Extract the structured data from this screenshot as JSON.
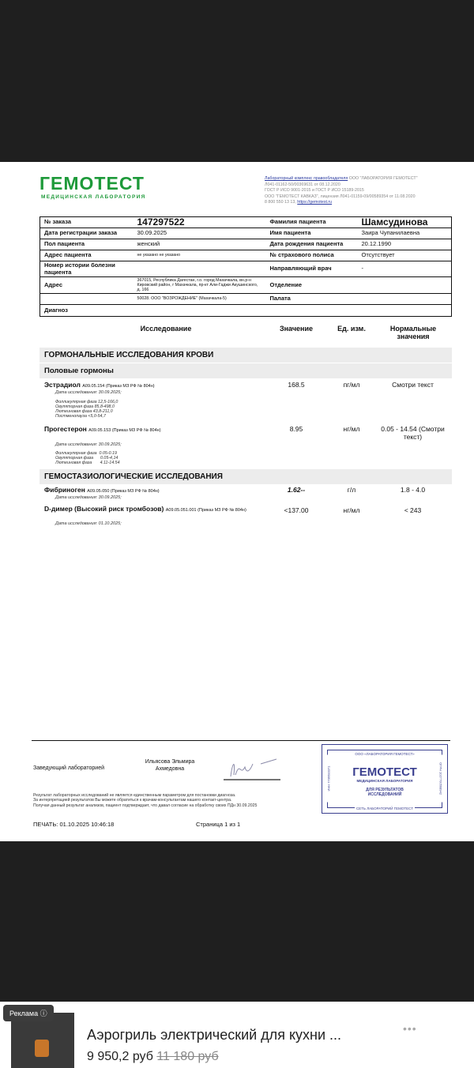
{
  "header": {
    "logo": "ГЕМОТЕСТ",
    "logo_sub": "МЕДИЦИНСКАЯ ЛАБОРАТОРИЯ",
    "lab_info": [
      "Лабораторный комплекс правообладателя",
      "ООО \"ЛАБОРАТОРИЯ ГЕМОТЕСТ\"",
      "Л041-01162-50/00369631 от 08.12.2020",
      "ГОСТ Р ИСО 9001-2015 и ГОСТ Р ИСО 15189-2015",
      "ООО \"ГЕМОТЕСТ КАВКАЗ\", лицензия Л041-01159-09/00589354 от 11.08.2020",
      "8 800 550 13 13,",
      "https://gemotest.ru"
    ]
  },
  "patient": {
    "order_label": "№ заказа",
    "order": "147297522",
    "surname_label": "Фамилия пациента",
    "surname": "Шамсудинова",
    "reg_label": "Дата регистрации заказа",
    "reg": "30.09.2025",
    "name_label": "Имя пациента",
    "name": "Заира Чупанилаевна",
    "sex_label": "Пол пациента",
    "sex": "женский",
    "dob_label": "Дата рождения пациента",
    "dob": "20.12.1990",
    "addr_label": "Адрес пациента",
    "addr": "не указано не указано",
    "policy_label": "№ страхового полиса",
    "policy": "Отсутствует",
    "history_label": "Номер истории болезни пациента",
    "doctor_label": "Направляющий врач",
    "doctor": "-",
    "address_label": "Адрес",
    "address": "367015, Республика Дагестан, г.о. город Махачкала, вн.р-н Кировский район, г Махачкала, пр-кт Али-Гаджи Акушинского, д. 166",
    "dept_label": "Отделение",
    "clinic": "50028. ООО \"ВОЗРОЖДЕНИЕ\" (Махачкала-5)",
    "ward_label": "Палата",
    "diagnosis_label": "Диагноз"
  },
  "columns": {
    "test": "Исследование",
    "value": "Значение",
    "unit": "Ед. изм.",
    "norm": "Нормальные значения"
  },
  "sections": {
    "hormones": "ГОРМОНАЛЬНЫЕ ИССЛЕДОВАНИЯ КРОВИ",
    "sex_hormones": "Половые гормоны",
    "hemostasis": "ГЕМОСТАЗИОЛОГИЧЕСКИЕ ИССЛЕДОВАНИЯ"
  },
  "tests": [
    {
      "name": "Эстрадиол",
      "code": "A09.05.154 (Приказ МЗ РФ № 804н)",
      "date": "Дата исследования: 30.09.2025;",
      "value": "168.5",
      "unit": "пг/мл",
      "norm": "Смотри текст",
      "note": "Фолликулярная фаза 12,5-166,0\nОвуляторная фаза 85,8-498,0\nЛютеиновая фаза 43,8-211,0\nПостменопауза <5,0-54,7"
    },
    {
      "name": "Прогестерон",
      "code": "A09.05.153 (Приказ МЗ РФ № 804н)",
      "date": "Дата исследования: 30.09.2025;",
      "value": "8.95",
      "unit": "нг/мл",
      "norm": "0.05 - 14.54 (Смотри текст)",
      "note": "Фолликулярная фаза  0.05-0.19\nОвуляторная фаза      0.05-4,14\nЛютеиновая фаза       4.11-14.54"
    },
    {
      "name": "Фибриноген",
      "code": "A09.05.050 (Приказ МЗ РФ № 804н)",
      "date": "Дата исследования: 30.09.2025;",
      "value": "1.62--",
      "unit": "г/л",
      "norm": "1.8 - 4.0"
    },
    {
      "name": "D-димер (Высокий риск тромбозов)",
      "code": "A09.05.051.001 (Приказ МЗ РФ № 804н)",
      "date": "Дата исследования: 01.10.2025;",
      "value": "<137.00",
      "unit": "нг/мл",
      "norm": "< 243"
    }
  ],
  "footer": {
    "role": "Заведующий лабораторией",
    "head": "Ильясова Эльмира Ахмедовна",
    "disclaimer": [
      "Результат лабораторных исследований не является единственным параметром для постановки диагноза.",
      "За интерпретацией результатов Вы можете обратиться к врачам-консультантам нашего контакт-центра.",
      "Получая данный результат анализов, пациент подтверждает, что давал согласие на обработку своих ПДн 30.09.2025"
    ],
    "print": "ПЕЧАТЬ: 01.10.2025 10:46:18",
    "page": "Страница 1 из 1",
    "stamp": {
      "top": "ООО «ЛАБОРАТОРИЯ ГЕМОТЕСТ»",
      "logo": "ГЕМОТЕСТ",
      "sub": "МЕДИЦИНСКАЯ ЛАБОРАТОРИЯ",
      "mid": "ДЛЯ РЕЗУЛЬТАТОВ ИССЛЕДОВАНИЙ",
      "bottom": "СЕТЬ ЛАБОРАТОРИЙ ГЕМОТЕСТ",
      "left": "ИНН 7706683371",
      "right": "ОГРН 1027700568942"
    }
  },
  "ad": {
    "badge": "Реклама",
    "title": "Аэрогриль электрический для кухни ...",
    "price": "9 950,2 руб",
    "old_price": "11 180 руб"
  },
  "colors": {
    "brand": "#1e9a3a",
    "stamp": "#3a3f8f"
  }
}
